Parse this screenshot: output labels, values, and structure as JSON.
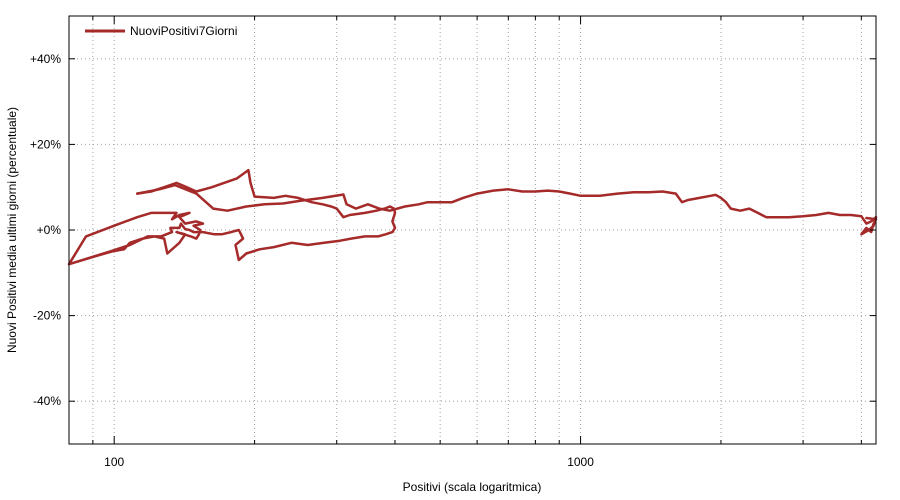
{
  "chart_data": {
    "type": "line",
    "title": "",
    "xlabel": "Positivi (scala logaritmica)",
    "ylabel": "Nuovi Positivi media ultimi giorni (percentuale)",
    "x_scale": "log",
    "xlim": [
      80,
      4300
    ],
    "ylim": [
      -50,
      50
    ],
    "x_ticks": [
      {
        "value": 100,
        "label": "100"
      },
      {
        "value": 1000,
        "label": "1000"
      }
    ],
    "x_minor_ticks": [
      90,
      200,
      300,
      400,
      500,
      600,
      700,
      800,
      900,
      2000,
      3000,
      4000
    ],
    "y_ticks": [
      {
        "value": -40,
        "label": "-40%"
      },
      {
        "value": -20,
        "label": "-20%"
      },
      {
        "value": 0,
        "label": "+0%"
      },
      {
        "value": 20,
        "label": "+20%"
      },
      {
        "value": 40,
        "label": "+40%"
      }
    ],
    "grid": true,
    "legend_position": "top-left",
    "series": [
      {
        "name": "NuoviPositivi7Giorni",
        "color": "#a52a2a",
        "points": [
          [
            80,
            -8
          ],
          [
            92,
            -6
          ],
          [
            99,
            -5
          ],
          [
            105,
            -4.5
          ],
          [
            108,
            -3
          ],
          [
            115,
            -2
          ],
          [
            122,
            -1.5
          ],
          [
            128,
            -2
          ],
          [
            130,
            -5.5
          ],
          [
            138,
            -3
          ],
          [
            142,
            -1
          ],
          [
            136,
            -0.5
          ],
          [
            146,
            -1.5
          ],
          [
            150,
            -2
          ],
          [
            152,
            -1
          ],
          [
            153,
            0
          ],
          [
            148,
            1
          ],
          [
            155,
            1.5
          ],
          [
            150,
            2
          ],
          [
            142,
            1.5
          ],
          [
            138,
            3
          ],
          [
            145,
            4
          ],
          [
            138,
            3.5
          ],
          [
            133,
            2.5
          ],
          [
            136,
            4
          ],
          [
            127,
            4
          ],
          [
            120,
            4
          ],
          [
            112,
            3
          ],
          [
            100,
            1
          ],
          [
            87,
            -1.5
          ],
          [
            80,
            -8
          ],
          [
            98,
            -5
          ],
          [
            108,
            -3.5
          ],
          [
            118,
            -1.5
          ],
          [
            126,
            -1.5
          ],
          [
            133,
            -0.5
          ],
          [
            132,
            0.5
          ],
          [
            138,
            0.5
          ],
          [
            139,
            1.5
          ],
          [
            142,
            0.2
          ],
          [
            145,
            0
          ],
          [
            148,
            -0.5
          ],
          [
            155,
            -0.5
          ],
          [
            164,
            -1
          ],
          [
            170,
            -1
          ],
          [
            178,
            -0.5
          ],
          [
            185,
            0
          ],
          [
            189,
            -2
          ],
          [
            182,
            -3.5
          ],
          [
            185,
            -7
          ],
          [
            192,
            -5.5
          ],
          [
            205,
            -4.5
          ],
          [
            220,
            -4
          ],
          [
            240,
            -3
          ],
          [
            260,
            -3.5
          ],
          [
            282,
            -3
          ],
          [
            305,
            -2.5
          ],
          [
            322,
            -2
          ],
          [
            345,
            -1.5
          ],
          [
            368,
            -1.5
          ],
          [
            382,
            -1
          ],
          [
            395,
            -0.5
          ],
          [
            400,
            0.5
          ],
          [
            395,
            2
          ],
          [
            400,
            4
          ],
          [
            398,
            5
          ],
          [
            390,
            5.5
          ],
          [
            380,
            5
          ],
          [
            365,
            4.5
          ],
          [
            345,
            4
          ],
          [
            320,
            3.5
          ],
          [
            310,
            3
          ],
          [
            300,
            5
          ],
          [
            292,
            5.5
          ],
          [
            280,
            6
          ],
          [
            265,
            6.5
          ],
          [
            248,
            7.5
          ],
          [
            233,
            8
          ],
          [
            220,
            7.5
          ],
          [
            200,
            7.8
          ],
          [
            196,
            11
          ],
          [
            194,
            14
          ],
          [
            183,
            12
          ],
          [
            172,
            11
          ],
          [
            162,
            10
          ],
          [
            150,
            9
          ],
          [
            143,
            10
          ],
          [
            136,
            11
          ],
          [
            128,
            10
          ],
          [
            120,
            9
          ],
          [
            112,
            8.5
          ]
        ]
      },
      {
        "name": "",
        "color": "#a52a2a",
        "points": [
          [
            112,
            8.5
          ],
          [
            125,
            9.5
          ],
          [
            135,
            10.5
          ],
          [
            150,
            8.5
          ],
          [
            163,
            5
          ],
          [
            175,
            4.5
          ],
          [
            192,
            5.5
          ],
          [
            210,
            6
          ],
          [
            230,
            6.2
          ],
          [
            250,
            6.8
          ],
          [
            280,
            7.5
          ],
          [
            310,
            8.3
          ],
          [
            315,
            6
          ],
          [
            330,
            5
          ],
          [
            350,
            6
          ],
          [
            370,
            5
          ],
          [
            390,
            4.5
          ],
          [
            420,
            5.5
          ],
          [
            450,
            6
          ],
          [
            470,
            6.5
          ],
          [
            500,
            6.5
          ],
          [
            530,
            6.5
          ],
          [
            560,
            7.5
          ],
          [
            600,
            8.5
          ],
          [
            650,
            9.2
          ],
          [
            700,
            9.5
          ],
          [
            750,
            9
          ],
          [
            800,
            9
          ],
          [
            850,
            9.2
          ],
          [
            900,
            9
          ],
          [
            950,
            8.5
          ],
          [
            1000,
            8
          ],
          [
            1100,
            8
          ],
          [
            1200,
            8.5
          ],
          [
            1300,
            8.8
          ],
          [
            1400,
            8.8
          ],
          [
            1500,
            9
          ],
          [
            1600,
            8.5
          ],
          [
            1650,
            6.5
          ],
          [
            1700,
            7
          ],
          [
            1800,
            7.5
          ],
          [
            1900,
            8
          ],
          [
            1950,
            8.2
          ],
          [
            2000,
            7.5
          ],
          [
            2050,
            6.5
          ],
          [
            2100,
            5
          ],
          [
            2200,
            4.5
          ],
          [
            2300,
            5
          ],
          [
            2400,
            4
          ],
          [
            2500,
            3
          ],
          [
            2800,
            3
          ],
          [
            3000,
            3.2
          ],
          [
            3200,
            3.5
          ],
          [
            3400,
            4
          ],
          [
            3600,
            3.5
          ],
          [
            3800,
            3.5
          ],
          [
            4000,
            3.2
          ],
          [
            4100,
            1.5
          ],
          [
            4200,
            2
          ],
          [
            4300,
            3
          ],
          [
            4250,
            1
          ],
          [
            4150,
            0
          ],
          [
            4000,
            -1
          ],
          [
            4100,
            0.5
          ],
          [
            4200,
            -0.5
          ],
          [
            4250,
            1.5
          ],
          [
            4300,
            2.5
          ],
          [
            4100,
            2.8
          ]
        ]
      }
    ]
  }
}
